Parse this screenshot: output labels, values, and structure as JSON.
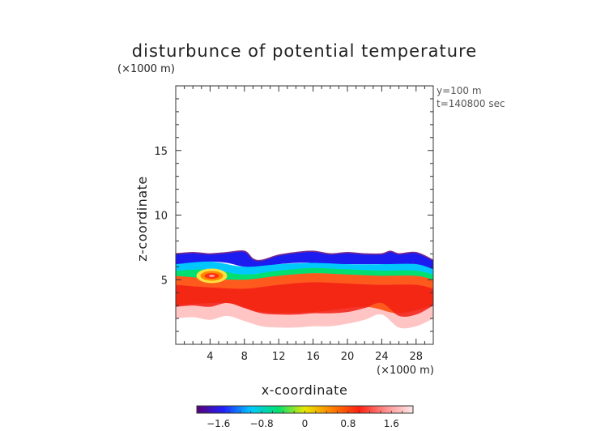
{
  "chart_data": {
    "type": "heatmap",
    "title": "disturbunce of potential temperature",
    "z_unit_label": "(×1000 m)",
    "x_unit_label": "(×1000 m)",
    "xlabel": "x-coordinate",
    "ylabel": "z-coordinate",
    "annotations": [
      "y=100 m",
      "t=140800 sec"
    ],
    "xlim": [
      0,
      30
    ],
    "ylim": [
      0,
      20
    ],
    "x_ticks": [
      4,
      8,
      12,
      16,
      20,
      24,
      28
    ],
    "y_ticks": [
      5,
      10,
      15
    ],
    "colorbar": {
      "range": [
        -2.0,
        2.0
      ],
      "ticks": [
        -1.6,
        -0.8,
        0,
        0.8,
        1.6
      ],
      "tick_labels": [
        "−1.6",
        "−0.8",
        "0",
        "0.8",
        "1.6"
      ],
      "colors": [
        "#5a0078",
        "#2020ff",
        "#00c8ff",
        "#00e070",
        "#e8e800",
        "#ff8000",
        "#ff2010",
        "#ff9090",
        "#ffe8e8"
      ]
    },
    "field_layers": [
      {
        "name": "cold top band",
        "value": -1.4,
        "color": "#1c1cf0",
        "top": [
          [
            0,
            7.0
          ],
          [
            2,
            7.1
          ],
          [
            4,
            7.0
          ],
          [
            6,
            7.1
          ],
          [
            8,
            7.2
          ],
          [
            9,
            6.6
          ],
          [
            10,
            6.5
          ],
          [
            12,
            6.9
          ],
          [
            14,
            7.1
          ],
          [
            16,
            7.2
          ],
          [
            18,
            7.0
          ],
          [
            20,
            7.1
          ],
          [
            22,
            7.0
          ],
          [
            24,
            7.0
          ],
          [
            25,
            7.2
          ],
          [
            26,
            7.0
          ],
          [
            28,
            7.1
          ],
          [
            30,
            6.5
          ]
        ],
        "bottom": [
          [
            0,
            6.1
          ],
          [
            2,
            6.2
          ],
          [
            4,
            6.4
          ],
          [
            6,
            6.3
          ],
          [
            8,
            6.0
          ],
          [
            10,
            6.0
          ],
          [
            12,
            6.2
          ],
          [
            14,
            6.3
          ],
          [
            16,
            6.3
          ],
          [
            18,
            6.2
          ],
          [
            20,
            6.2
          ],
          [
            22,
            6.2
          ],
          [
            24,
            6.2
          ],
          [
            26,
            6.1
          ],
          [
            28,
            6.2
          ],
          [
            30,
            5.8
          ]
        ]
      },
      {
        "name": "cyan transition",
        "value": -0.6,
        "color": "#00c8ff",
        "top": [
          [
            0,
            6.2
          ],
          [
            4,
            6.4
          ],
          [
            8,
            6.0
          ],
          [
            12,
            6.2
          ],
          [
            16,
            6.3
          ],
          [
            20,
            6.2
          ],
          [
            24,
            6.2
          ],
          [
            28,
            6.2
          ],
          [
            30,
            5.8
          ]
        ],
        "bottom": [
          [
            0,
            5.6
          ],
          [
            4,
            5.7
          ],
          [
            8,
            5.3
          ],
          [
            12,
            5.6
          ],
          [
            16,
            5.8
          ],
          [
            20,
            5.7
          ],
          [
            24,
            5.6
          ],
          [
            28,
            5.6
          ],
          [
            30,
            5.3
          ]
        ]
      },
      {
        "name": "green transition",
        "value": 0.2,
        "color": "#00e070",
        "top": [
          [
            0,
            5.7
          ],
          [
            4,
            5.8
          ],
          [
            8,
            5.4
          ],
          [
            12,
            5.7
          ],
          [
            16,
            5.9
          ],
          [
            20,
            5.8
          ],
          [
            24,
            5.7
          ],
          [
            28,
            5.7
          ],
          [
            30,
            5.4
          ]
        ],
        "bottom": [
          [
            0,
            5.2
          ],
          [
            4,
            5.0
          ],
          [
            8,
            4.9
          ],
          [
            12,
            5.2
          ],
          [
            16,
            5.4
          ],
          [
            20,
            5.3
          ],
          [
            24,
            5.2
          ],
          [
            28,
            5.2
          ],
          [
            30,
            4.9
          ]
        ]
      },
      {
        "name": "warm body",
        "value": 1.4,
        "color": "#ff5a1e",
        "top": [
          [
            0,
            5.3
          ],
          [
            4,
            5.1
          ],
          [
            8,
            5.0
          ],
          [
            12,
            5.3
          ],
          [
            16,
            5.5
          ],
          [
            20,
            5.4
          ],
          [
            24,
            5.3
          ],
          [
            28,
            5.3
          ],
          [
            30,
            5.0
          ]
        ],
        "bottom": [
          [
            0,
            2.3
          ],
          [
            2,
            2.4
          ],
          [
            4,
            2.3
          ],
          [
            6,
            2.6
          ],
          [
            8,
            2.2
          ],
          [
            10,
            1.8
          ],
          [
            12,
            1.7
          ],
          [
            14,
            1.7
          ],
          [
            16,
            1.8
          ],
          [
            18,
            1.8
          ],
          [
            20,
            1.9
          ],
          [
            22,
            2.2
          ],
          [
            24,
            2.6
          ],
          [
            26,
            1.6
          ],
          [
            28,
            1.7
          ],
          [
            30,
            2.4
          ]
        ]
      },
      {
        "name": "pale lower fringe",
        "value": 1.9,
        "color": "#ffc4c4",
        "top": [
          [
            0,
            3.0
          ],
          [
            6,
            3.2
          ],
          [
            10,
            2.5
          ],
          [
            16,
            2.5
          ],
          [
            22,
            2.9
          ],
          [
            26,
            2.4
          ],
          [
            30,
            3.0
          ]
        ],
        "bottom": [
          [
            0,
            2.0
          ],
          [
            2,
            2.1
          ],
          [
            4,
            1.9
          ],
          [
            6,
            2.2
          ],
          [
            8,
            1.8
          ],
          [
            10,
            1.4
          ],
          [
            12,
            1.3
          ],
          [
            14,
            1.3
          ],
          [
            16,
            1.4
          ],
          [
            18,
            1.4
          ],
          [
            20,
            1.6
          ],
          [
            22,
            1.9
          ],
          [
            24,
            2.3
          ],
          [
            26,
            1.3
          ],
          [
            28,
            1.4
          ],
          [
            30,
            2.0
          ]
        ]
      }
    ],
    "features": [
      {
        "name": "warm pocket in cold layer",
        "x": 4.2,
        "z": 5.3,
        "value": 1.6
      }
    ]
  }
}
